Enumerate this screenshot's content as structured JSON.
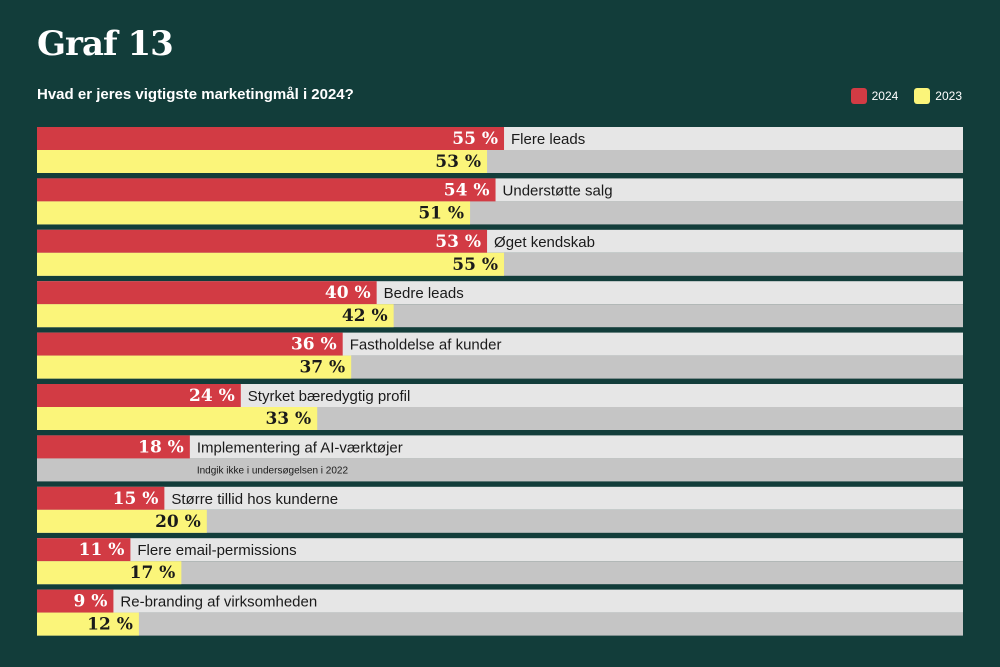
{
  "chart_data": {
    "type": "bar",
    "title": "Graf 13",
    "subtitle": "Hvad er jeres vigtigste marketingmål i 2024?",
    "xlim": [
      0,
      100
    ],
    "value_suffix": " %",
    "legend": {
      "position": "top-right"
    },
    "categories": [
      "Flere leads",
      "Understøtte salg",
      "Øget kendskab",
      "Bedre leads",
      "Fastholdelse af kunder",
      "Styrket bæredygtig profil",
      "Implementering af AI-værktøjer",
      "Større tillid hos kunderne",
      "Flere email-permissions",
      "Re-branding af virksomheden"
    ],
    "series": [
      {
        "name": "2024",
        "color": "#d23b44",
        "values": [
          55,
          54,
          53,
          40,
          36,
          24,
          18,
          15,
          11,
          9
        ]
      },
      {
        "name": "2023",
        "color": "#fbf57a",
        "values": [
          53,
          51,
          55,
          42,
          37,
          33,
          null,
          20,
          17,
          12
        ]
      }
    ],
    "notes": {
      "Implementering af AI-værktøjer": "Indgik ikke i undersøgelsen i 2022"
    }
  }
}
